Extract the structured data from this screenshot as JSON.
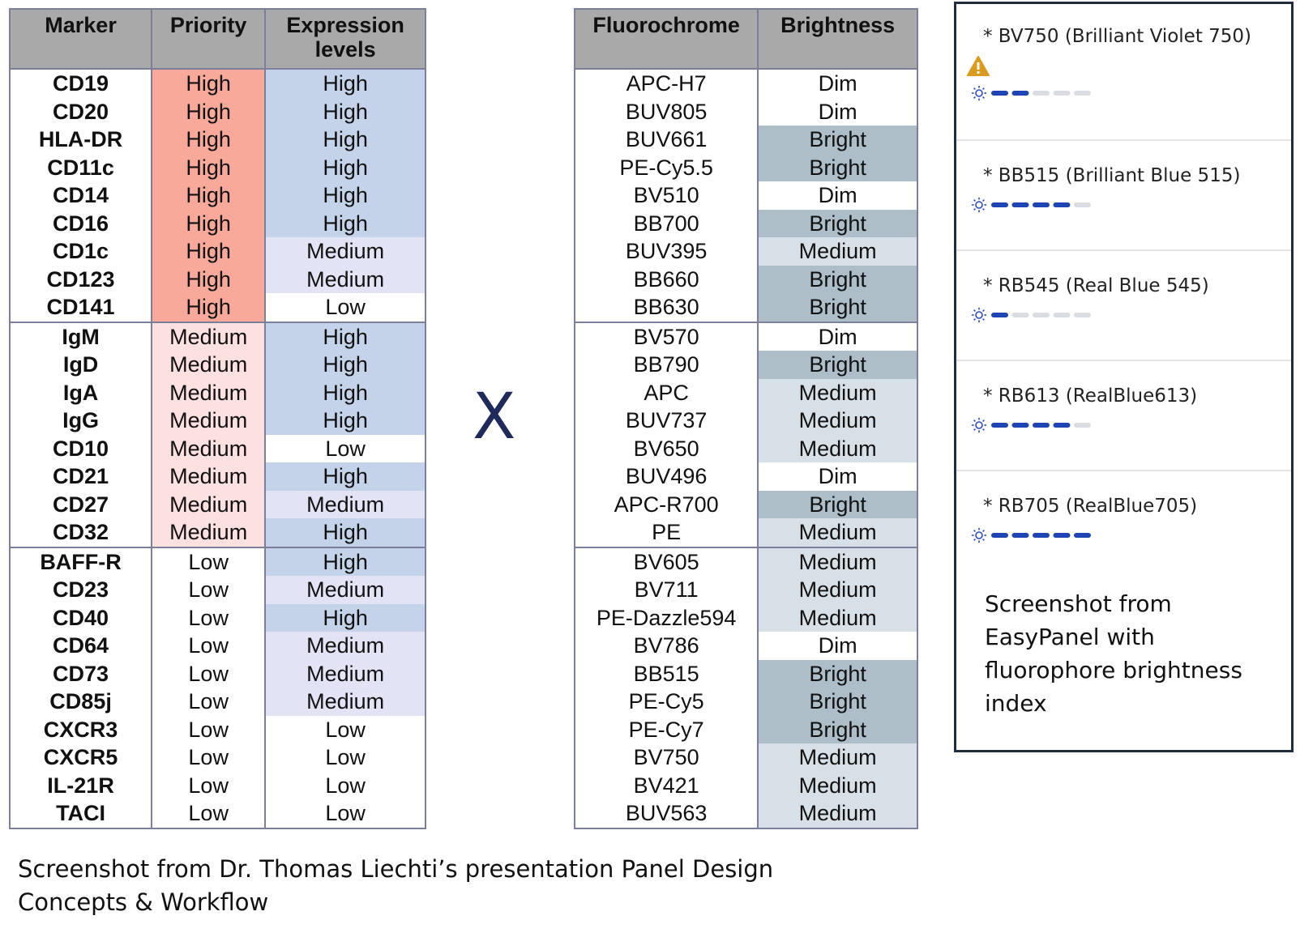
{
  "marker_table": {
    "headers": [
      "Marker",
      "Priority",
      "Expression levels"
    ],
    "groups": [
      [
        [
          "CD19",
          "High",
          "High"
        ],
        [
          "CD20",
          "High",
          "High"
        ],
        [
          "HLA-DR",
          "High",
          "High"
        ],
        [
          "CD11c",
          "High",
          "High"
        ],
        [
          "CD14",
          "High",
          "High"
        ],
        [
          "CD16",
          "High",
          "High"
        ],
        [
          "CD1c",
          "High",
          "Medium"
        ],
        [
          "CD123",
          "High",
          "Medium"
        ],
        [
          "CD141",
          "High",
          "Low"
        ]
      ],
      [
        [
          "IgM",
          "Medium",
          "High"
        ],
        [
          "IgD",
          "Medium",
          "High"
        ],
        [
          "IgA",
          "Medium",
          "High"
        ],
        [
          "IgG",
          "Medium",
          "High"
        ],
        [
          "CD10",
          "Medium",
          "Low"
        ],
        [
          "CD21",
          "Medium",
          "High"
        ],
        [
          "CD27",
          "Medium",
          "Medium"
        ],
        [
          "CD32",
          "Medium",
          "High"
        ]
      ],
      [
        [
          "BAFF-R",
          "Low",
          "High"
        ],
        [
          "CD23",
          "Low",
          "Medium"
        ],
        [
          "CD40",
          "Low",
          "High"
        ],
        [
          "CD64",
          "Low",
          "Medium"
        ],
        [
          "CD73",
          "Low",
          "Medium"
        ],
        [
          "CD85j",
          "Low",
          "Medium"
        ],
        [
          "CXCR3",
          "Low",
          "Low"
        ],
        [
          "CXCR5",
          "Low",
          "Low"
        ],
        [
          "IL-21R",
          "Low",
          "Low"
        ],
        [
          "TACI",
          "Low",
          "Low"
        ]
      ]
    ],
    "cell_colors": {
      "1": {
        "High": "#f8a99a",
        "Medium": "#fde0e0",
        "Low": "#ffffff"
      },
      "2": {
        "High": "#c5d3ea",
        "Medium": "#e2e3f5",
        "Low": "#ffffff"
      }
    }
  },
  "cross": "X",
  "fluorochrome_table": {
    "headers": [
      "Fluorochrome",
      "Brightness"
    ],
    "groups": [
      [
        [
          "APC-H7",
          "Dim"
        ],
        [
          "BUV805",
          "Dim"
        ],
        [
          "BUV661",
          "Bright"
        ],
        [
          "PE-Cy5.5",
          "Bright"
        ],
        [
          "BV510",
          "Dim"
        ],
        [
          "BB700",
          "Bright"
        ],
        [
          "BUV395",
          "Medium"
        ],
        [
          "BB660",
          "Bright"
        ],
        [
          "BB630",
          "Bright"
        ]
      ],
      [
        [
          "BV570",
          "Dim"
        ],
        [
          "BB790",
          "Bright"
        ],
        [
          "APC",
          "Medium"
        ],
        [
          "BUV737",
          "Medium"
        ],
        [
          "BV650",
          "Medium"
        ],
        [
          "BUV496",
          "Dim"
        ],
        [
          "APC-R700",
          "Bright"
        ],
        [
          "PE",
          "Medium"
        ]
      ],
      [
        [
          "BV605",
          "Medium"
        ],
        [
          "BV711",
          "Medium"
        ],
        [
          "PE-Dazzle594",
          "Medium"
        ],
        [
          "BV786",
          "Dim"
        ],
        [
          "BB515",
          "Bright"
        ],
        [
          "PE-Cy5",
          "Bright"
        ],
        [
          "PE-Cy7",
          "Bright"
        ],
        [
          "BV750",
          "Medium"
        ],
        [
          "BV421",
          "Medium"
        ],
        [
          "BUV563",
          "Medium"
        ]
      ]
    ],
    "cell_colors": {
      "1": {
        "Bright": "#adbec8",
        "Medium": "#d7e0e6",
        "Dim": "#ffffff"
      }
    }
  },
  "caption": "Screenshot from Dr. Thomas Liechti’s presentation Panel Design Concepts & Workflow",
  "easypanel": {
    "scale_max": 5,
    "items": [
      {
        "label": "* BV750 (Brilliant Violet 750)",
        "brightness": 2,
        "warning": true
      },
      {
        "label": "* BB515 (Brilliant Blue 515)",
        "brightness": 4,
        "warning": false
      },
      {
        "label": "* RB545 (Real Blue 545)",
        "brightness": 1,
        "warning": false
      },
      {
        "label": "* RB613 (RealBlue613)",
        "brightness": 4,
        "warning": false
      },
      {
        "label": "* RB705 (RealBlue705)",
        "brightness": 5,
        "warning": false
      }
    ],
    "caption": "Screenshot from EasyPanel with fluorophore brightness index"
  }
}
